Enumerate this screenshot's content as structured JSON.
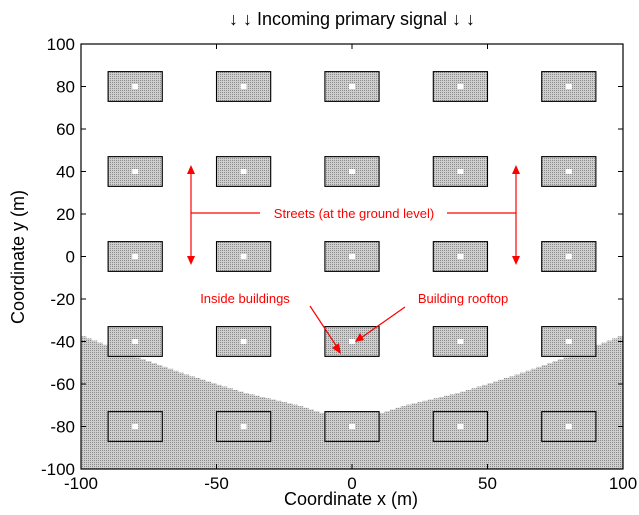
{
  "title": "↓ ↓  Incoming primary signal  ↓ ↓",
  "xlabel": "Coordinate x (m)",
  "ylabel": "Coordinate y (m)",
  "annotations": {
    "streets": "Streets (at the ground level)",
    "inside": "Inside buildings",
    "rooftop": "Building rooftop"
  },
  "colors": {
    "shadow": "#bdbdbd",
    "building": "#c4c4c4",
    "annotation": "#ff0000",
    "roof_marker": "#ffffff"
  },
  "chart_data": {
    "type": "map",
    "xlim": [
      -100,
      100
    ],
    "ylim": [
      -100,
      100
    ],
    "x_ticks": [
      -100,
      -50,
      0,
      50,
      100
    ],
    "y_ticks": [
      -100,
      -80,
      -60,
      -40,
      -20,
      0,
      20,
      40,
      60,
      80,
      100
    ],
    "building_centers_x": [
      -80,
      -40,
      0,
      40,
      80
    ],
    "building_centers_y": [
      80,
      40,
      0,
      -40,
      -80
    ],
    "building_size": [
      20,
      14
    ],
    "shadow_boundary": [
      [
        -100,
        -37
      ],
      [
        -80,
        -47
      ],
      [
        -60,
        -56
      ],
      [
        -40,
        -64
      ],
      [
        -20,
        -70
      ],
      [
        -10,
        -74
      ],
      [
        0,
        -75
      ],
      [
        10,
        -74
      ],
      [
        20,
        -70
      ],
      [
        40,
        -64
      ],
      [
        60,
        -56
      ],
      [
        80,
        -47
      ],
      [
        100,
        -37
      ]
    ]
  }
}
